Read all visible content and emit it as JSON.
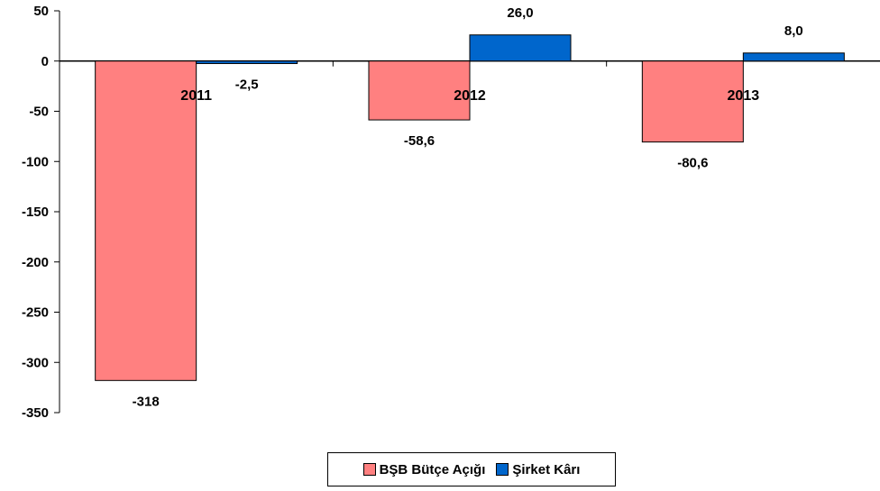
{
  "chart_data": {
    "type": "bar",
    "categories": [
      "2011",
      "2012",
      "2013"
    ],
    "series": [
      {
        "name": "BŞB Bütçe Açığı",
        "color": "#FF8080",
        "values": [
          -318,
          -58.6,
          -80.6
        ],
        "labels": [
          "-318",
          "-58,6",
          "-80,6"
        ]
      },
      {
        "name": "Şirket Kârı",
        "color": "#0066CC",
        "values": [
          -2.5,
          26.0,
          8.0
        ],
        "labels": [
          "-2,5",
          "26,0",
          "8,0"
        ]
      }
    ],
    "ylim": [
      -350,
      50
    ],
    "yticks": [
      50,
      0,
      -50,
      -100,
      -150,
      -200,
      -250,
      -300,
      -350
    ],
    "grid": false,
    "legend_position": "bottom-center"
  }
}
